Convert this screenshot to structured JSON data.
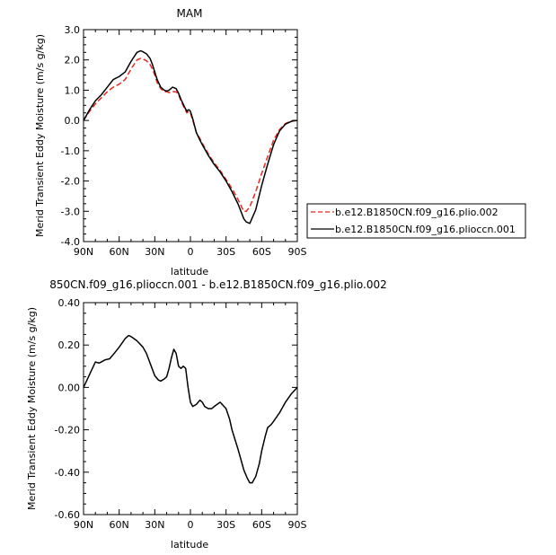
{
  "chart_data": [
    {
      "type": "line",
      "title": "MAM",
      "xlabel": "latitude",
      "ylabel": "Merid Transient Eddy Moisture (m/s g/kg)",
      "xlim": [
        90,
        -90
      ],
      "ylim": [
        -4.0,
        3.0
      ],
      "xticks": [
        {
          "value": 90,
          "label": "90N"
        },
        {
          "value": 60,
          "label": "60N"
        },
        {
          "value": 30,
          "label": "30N"
        },
        {
          "value": 0,
          "label": "0"
        },
        {
          "value": -30,
          "label": "30S"
        },
        {
          "value": -60,
          "label": "60S"
        },
        {
          "value": -90,
          "label": "90S"
        }
      ],
      "yticks": [
        {
          "value": 3.0,
          "label": "3.0"
        },
        {
          "value": 2.0,
          "label": "2.0"
        },
        {
          "value": 1.0,
          "label": "1.0"
        },
        {
          "value": 0.0,
          "label": "0.0"
        },
        {
          "value": -1.0,
          "label": "-1.0"
        },
        {
          "value": -2.0,
          "label": "-2.0"
        },
        {
          "value": -3.0,
          "label": "-3.0"
        },
        {
          "value": -4.0,
          "label": "-4.0"
        }
      ],
      "legend": "right",
      "series": [
        {
          "name": "b.e12.B1850CN.f09_g16.plio.002",
          "color": "#e8281e",
          "dash": true,
          "x": [
            90,
            85,
            80,
            75,
            70,
            65,
            60,
            55,
            50,
            45,
            42,
            40,
            37,
            34,
            32,
            30,
            28,
            25,
            22,
            20,
            18,
            15,
            12,
            10,
            8,
            5,
            3,
            2,
            1,
            0,
            -2,
            -5,
            -8,
            -10,
            -15,
            -20,
            -25,
            -30,
            -35,
            -40,
            -43,
            -45,
            -47,
            -50,
            -55,
            -60,
            -65,
            -70,
            -75,
            -80,
            -85,
            -87,
            -90
          ],
          "y": [
            0.0,
            0.3,
            0.55,
            0.75,
            0.95,
            1.1,
            1.2,
            1.35,
            1.7,
            2.0,
            2.05,
            2.03,
            1.97,
            1.85,
            1.7,
            1.5,
            1.25,
            1.05,
            0.95,
            0.95,
            0.92,
            0.95,
            0.95,
            0.85,
            0.65,
            0.4,
            0.25,
            0.28,
            0.3,
            0.25,
            0.0,
            -0.4,
            -0.6,
            -0.75,
            -1.1,
            -1.4,
            -1.65,
            -1.95,
            -2.25,
            -2.6,
            -2.85,
            -3.0,
            -3.0,
            -2.85,
            -2.35,
            -1.75,
            -1.2,
            -0.65,
            -0.3,
            -0.1,
            -0.02,
            -0.01,
            0.0
          ]
        },
        {
          "name": "b.e12.B1850CN.f09_g16.plioccn.001",
          "color": "#000000",
          "dash": false,
          "x": [
            90,
            85,
            80,
            75,
            70,
            65,
            60,
            55,
            50,
            45,
            42,
            40,
            37,
            34,
            32,
            30,
            28,
            25,
            22,
            20,
            18,
            15,
            12,
            10,
            8,
            5,
            3,
            2,
            1,
            0,
            -2,
            -5,
            -8,
            -10,
            -15,
            -20,
            -25,
            -30,
            -35,
            -40,
            -43,
            -45,
            -47,
            -50,
            -55,
            -60,
            -65,
            -70,
            -75,
            -80,
            -85,
            -87,
            -90
          ],
          "y": [
            0.0,
            0.35,
            0.65,
            0.85,
            1.1,
            1.35,
            1.45,
            1.6,
            1.95,
            2.25,
            2.3,
            2.27,
            2.2,
            2.05,
            1.85,
            1.6,
            1.35,
            1.1,
            1.0,
            0.97,
            1.0,
            1.1,
            1.05,
            0.9,
            0.7,
            0.45,
            0.3,
            0.35,
            0.35,
            0.3,
            0.05,
            -0.4,
            -0.65,
            -0.8,
            -1.15,
            -1.45,
            -1.7,
            -2.0,
            -2.35,
            -2.75,
            -3.05,
            -3.25,
            -3.35,
            -3.4,
            -2.95,
            -2.15,
            -1.45,
            -0.8,
            -0.35,
            -0.12,
            -0.03,
            -0.01,
            0.0
          ]
        }
      ]
    },
    {
      "type": "line",
      "title": "850CN.f09_g16.plioccn.001 - b.e12.B1850CN.f09_g16.plio.002",
      "xlabel": "latitude",
      "ylabel": "Merid Transient Eddy Moisture (m/s g/kg)",
      "xlim": [
        90,
        -90
      ],
      "ylim": [
        -0.6,
        0.4
      ],
      "xticks": [
        {
          "value": 90,
          "label": "90N"
        },
        {
          "value": 60,
          "label": "60N"
        },
        {
          "value": 30,
          "label": "30N"
        },
        {
          "value": 0,
          "label": "0"
        },
        {
          "value": -30,
          "label": "30S"
        },
        {
          "value": -60,
          "label": "60S"
        },
        {
          "value": -90,
          "label": "90S"
        }
      ],
      "yticks": [
        {
          "value": 0.4,
          "label": "0.40"
        },
        {
          "value": 0.2,
          "label": "0.20"
        },
        {
          "value": 0.0,
          "label": "0.00"
        },
        {
          "value": -0.2,
          "label": "-0.20"
        },
        {
          "value": -0.4,
          "label": "-0.40"
        },
        {
          "value": -0.6,
          "label": "-0.60"
        }
      ],
      "series": [
        {
          "color": "#000000",
          "dash": false,
          "x": [
            90,
            85,
            80,
            77,
            75,
            72,
            68,
            65,
            60,
            55,
            52,
            50,
            45,
            40,
            37,
            35,
            33,
            30,
            27,
            25,
            22,
            20,
            18,
            16,
            14,
            12,
            10,
            8,
            6,
            4,
            2,
            0,
            -2,
            -5,
            -8,
            -10,
            -12,
            -15,
            -18,
            -20,
            -25,
            -30,
            -33,
            -35,
            -40,
            -43,
            -45,
            -48,
            -50,
            -52,
            -55,
            -58,
            -60,
            -63,
            -65,
            -68,
            -70,
            -75,
            -80,
            -85,
            -90
          ],
          "y": [
            0.0,
            0.06,
            0.12,
            0.115,
            0.12,
            0.13,
            0.135,
            0.155,
            0.19,
            0.23,
            0.245,
            0.24,
            0.22,
            0.19,
            0.16,
            0.13,
            0.1,
            0.055,
            0.035,
            0.03,
            0.04,
            0.05,
            0.09,
            0.14,
            0.18,
            0.16,
            0.1,
            0.09,
            0.1,
            0.09,
            0.0,
            -0.07,
            -0.09,
            -0.08,
            -0.06,
            -0.07,
            -0.09,
            -0.1,
            -0.1,
            -0.09,
            -0.07,
            -0.1,
            -0.15,
            -0.2,
            -0.29,
            -0.35,
            -0.39,
            -0.43,
            -0.45,
            -0.45,
            -0.42,
            -0.36,
            -0.3,
            -0.23,
            -0.19,
            -0.175,
            -0.16,
            -0.12,
            -0.07,
            -0.03,
            0.0
          ]
        }
      ]
    }
  ]
}
